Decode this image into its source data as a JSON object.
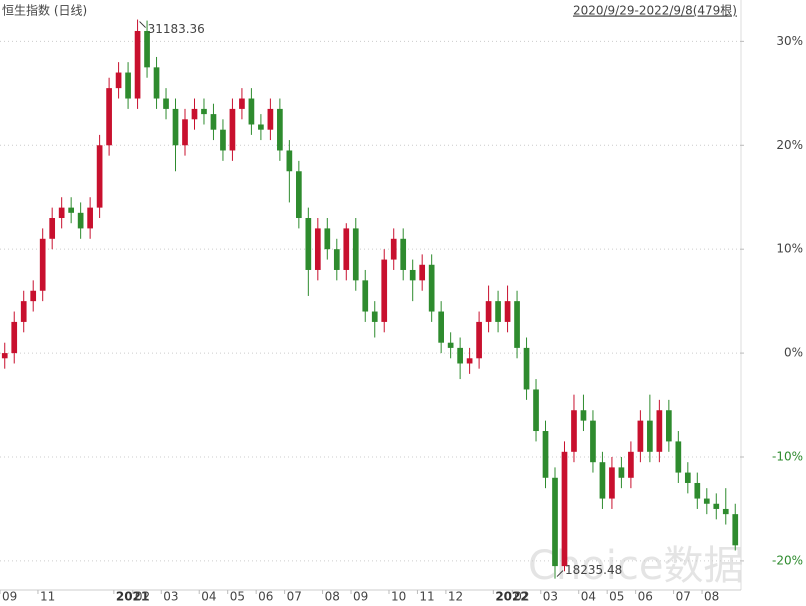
{
  "chart_data": {
    "type": "candlestick",
    "title": "恒生指数 (日线)",
    "range_label": "2020/9/29-2022/9/8(479根)",
    "watermark": "Choice数据",
    "max_label": 31183.36,
    "min_label": 18235.48,
    "categories": [
      "09",
      null,
      null,
      null,
      "11",
      null,
      null,
      null,
      null,
      null,
      null,
      null,
      "2021",
      null,
      "02",
      null,
      null,
      "03",
      null,
      null,
      null,
      "04",
      null,
      null,
      "05",
      null,
      null,
      "06",
      null,
      null,
      "07",
      null,
      null,
      null,
      "08",
      null,
      null,
      "09",
      null,
      null,
      null,
      "10",
      null,
      null,
      "11",
      null,
      null,
      "12",
      null,
      null,
      null,
      null,
      "2022",
      null,
      "02",
      null,
      null,
      "03",
      null,
      null,
      null,
      "04",
      null,
      null,
      "05",
      null,
      null,
      "06",
      null,
      null,
      null,
      "07",
      null,
      null,
      "08",
      null,
      null,
      null
    ],
    "open": [
      -0.5,
      0,
      3,
      5,
      6,
      11,
      13,
      14,
      13.5,
      12,
      14,
      20,
      25.5,
      27,
      24.5,
      31,
      27.5,
      24.5,
      23.5,
      20,
      22.5,
      23.5,
      23,
      21.5,
      19.5,
      23.5,
      24.5,
      22,
      21.5,
      23.5,
      19.5,
      17.5,
      13,
      8,
      12,
      10,
      8,
      12,
      7,
      4,
      3,
      9,
      11,
      8,
      7,
      8.5,
      4,
      1,
      0.5,
      -1,
      -0.5,
      3,
      5,
      3,
      5,
      0.5,
      -3.5,
      -7.5,
      -12,
      -20.5,
      -9.5,
      -5.5,
      -6.5,
      -10.5,
      -14,
      -11,
      -12,
      -9.5,
      -6.5,
      -9.5,
      -5.5,
      -8.5,
      -11.5,
      -12.5,
      -14,
      -14.5,
      -15,
      -15.5
    ],
    "high": [
      1,
      4,
      6,
      7,
      12,
      14,
      15,
      15,
      14.5,
      15,
      21,
      26.5,
      28,
      28,
      32.1,
      32,
      28.5,
      25.5,
      24.5,
      23.5,
      24.5,
      24.5,
      24,
      22.5,
      24.5,
      25.5,
      25.5,
      23,
      24.5,
      24.5,
      20.5,
      18.5,
      14,
      13,
      13,
      11,
      12.5,
      13,
      8,
      5,
      10,
      12,
      12,
      9,
      9.5,
      9.5,
      5,
      2,
      1.5,
      0.5,
      4,
      6.5,
      6,
      6.5,
      6,
      1.5,
      -2.5,
      -6.5,
      -11,
      -8.5,
      -4,
      -4,
      -5.5,
      -9.5,
      -10,
      -10,
      -8.5,
      -5.5,
      -4,
      -4.5,
      -4.5,
      -7.5,
      -10.5,
      -11.5,
      -13,
      -13.5,
      -13,
      -14.5
    ],
    "low": [
      -1.5,
      -1,
      2,
      4,
      5,
      10,
      12,
      12.5,
      11,
      11,
      13,
      19,
      24.5,
      23.5,
      23.5,
      26.5,
      23.5,
      22.5,
      17.5,
      19,
      21.5,
      22,
      20.5,
      18.5,
      18.5,
      22.5,
      21,
      20.5,
      20.5,
      18.5,
      14.5,
      12,
      5.5,
      7,
      9,
      7,
      7,
      6,
      3,
      1.5,
      2,
      8,
      7,
      5,
      6,
      3,
      0,
      -0.5,
      -2.5,
      -2,
      -1.5,
      2,
      2,
      2,
      -0.5,
      -4.5,
      -8.5,
      -13,
      -21.7,
      -21,
      -10.5,
      -7.5,
      -11.5,
      -15,
      -15,
      -13,
      -13,
      -10.5,
      -10.5,
      -10.5,
      -9.5,
      -12.5,
      -13.5,
      -15,
      -15.5,
      -16,
      -16.5,
      -19
    ],
    "close": [
      0,
      3,
      5,
      6,
      11,
      13,
      14,
      13.5,
      12,
      14,
      20,
      25.5,
      27,
      24.5,
      31,
      27.5,
      24.5,
      23.5,
      20,
      22.5,
      23.5,
      23,
      21.5,
      19.5,
      23.5,
      24.5,
      22,
      21.5,
      23.5,
      19.5,
      17.5,
      13,
      8,
      12,
      10,
      8,
      12,
      7,
      4,
      3,
      9,
      11,
      8,
      7,
      8.5,
      4,
      1,
      0.5,
      -1,
      -0.5,
      3,
      5,
      3,
      5,
      0.5,
      -3.5,
      -7.5,
      -12,
      -20.5,
      -9.5,
      -5.5,
      -6.5,
      -10.5,
      -14,
      -11,
      -12,
      -9.5,
      -6.5,
      -9.5,
      -5.5,
      -8.5,
      -11.5,
      -12.5,
      -14,
      -14.5,
      -15,
      -15.5,
      -18.5
    ],
    "ylim": [
      -22.8,
      33.5
    ],
    "yticks": [
      {
        "value": 30,
        "label": "30%"
      },
      {
        "value": 20,
        "label": "20%"
      },
      {
        "value": 10,
        "label": "10%"
      },
      {
        "value": 0,
        "label": "0%"
      },
      {
        "value": -10,
        "label": "-10%"
      },
      {
        "value": -20,
        "label": "-20%"
      }
    ],
    "up_color": "#c8102e",
    "down_color": "#2e8b2e",
    "negative_tick_color": "#2e8b2e",
    "grid": true
  }
}
